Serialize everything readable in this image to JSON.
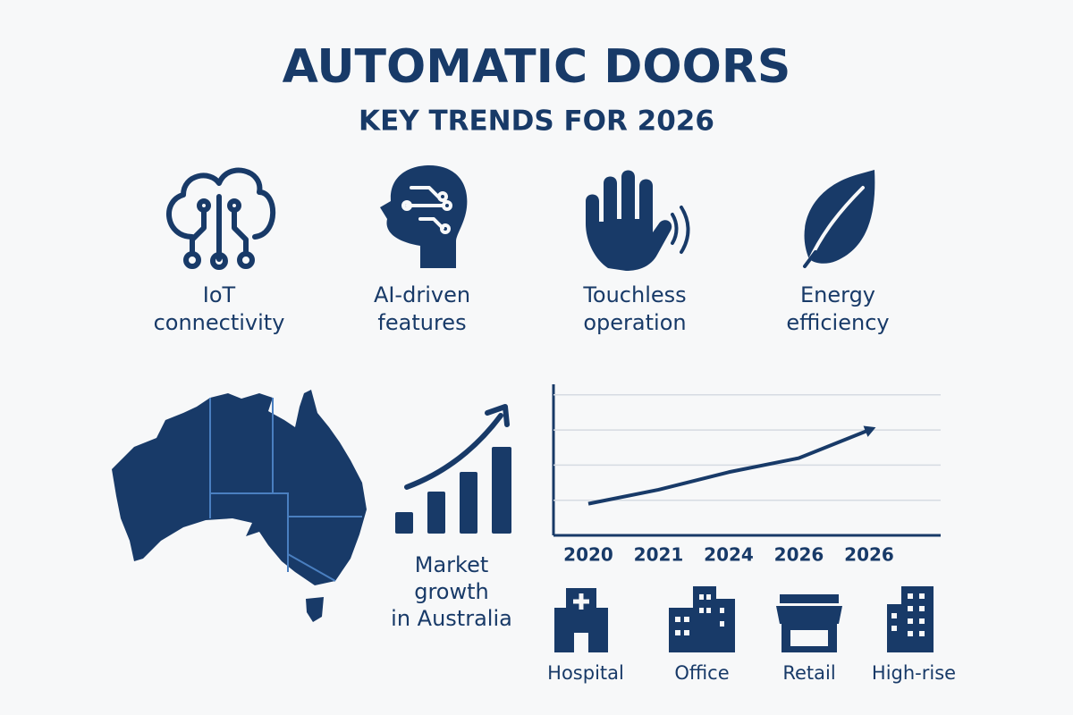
{
  "header": {
    "title": "AUTOMATIC DOORS",
    "subtitle": "KEY TRENDS FOR 2026"
  },
  "trends": [
    {
      "label_lines": [
        "IoT",
        "connectivity"
      ]
    },
    {
      "label_lines": [
        "AI-driven",
        "features"
      ]
    },
    {
      "label_lines": [
        "Touchless",
        "operation"
      ]
    },
    {
      "label_lines": [
        "Energy",
        "efficiency"
      ]
    }
  ],
  "market": {
    "label_lines": [
      "Market",
      "growth",
      "in Australia"
    ]
  },
  "line_chart": {
    "categories": [
      "2020",
      "2021",
      "2024",
      "2026",
      "2026"
    ],
    "values": [
      0.9,
      1.3,
      1.8,
      2.2,
      3.0
    ],
    "ylim": [
      0,
      4.3
    ],
    "gridlines": [
      1,
      2,
      3,
      4
    ]
  },
  "sectors": [
    "Hospital",
    "Office",
    "Retail",
    "High-rise"
  ]
}
